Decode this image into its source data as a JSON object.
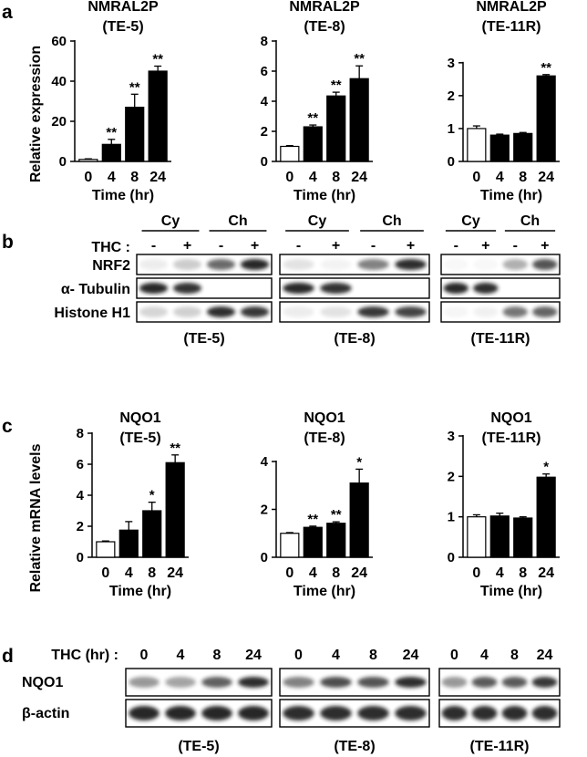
{
  "panel_letters": [
    "a",
    "b",
    "c",
    "d"
  ],
  "time_axis_label": "Time (hr)",
  "blot_colors": {
    "band": "#1a1a1a",
    "frame": "#000000",
    "bar_fill": "#000000",
    "control_fill": "#ffffff"
  },
  "chart_data": [
    {
      "type": "bar",
      "panel": "a",
      "title": [
        "NMRAL2P",
        "(TE-5)"
      ],
      "ylabel": "Relative expression",
      "xlabel": "Time (hr)",
      "categories": [
        "0",
        "4",
        "8",
        "24"
      ],
      "values": [
        1,
        8.5,
        27,
        45
      ],
      "errors": [
        0.3,
        2.5,
        6.5,
        2.5
      ],
      "significance": [
        "",
        "**",
        "**",
        "**"
      ],
      "ylim": [
        0,
        60
      ],
      "yticks": [
        0,
        20,
        40,
        60
      ]
    },
    {
      "type": "bar",
      "panel": "a",
      "title": [
        "NMRAL2P",
        "(TE-8)"
      ],
      "ylabel": "",
      "xlabel": "Time (hr)",
      "categories": [
        "0",
        "4",
        "8",
        "24"
      ],
      "values": [
        1,
        2.3,
        4.35,
        5.5
      ],
      "errors": [
        0.05,
        0.12,
        0.25,
        0.85
      ],
      "significance": [
        "",
        "**",
        "**",
        "**"
      ],
      "ylim": [
        0,
        8
      ],
      "yticks": [
        0,
        2,
        4,
        6,
        8
      ]
    },
    {
      "type": "bar",
      "panel": "a",
      "title": [
        "NMRAL2P",
        "(TE-11R)"
      ],
      "ylabel": "",
      "xlabel": "Time (hr)",
      "categories": [
        "0",
        "4",
        "8",
        "24"
      ],
      "values": [
        1,
        0.8,
        0.85,
        2.6
      ],
      "errors": [
        0.08,
        0.03,
        0.03,
        0.04
      ],
      "significance": [
        "",
        "",
        "",
        "**"
      ],
      "ylim": [
        0,
        3.3
      ],
      "yticks": [
        0,
        1,
        2,
        3
      ]
    },
    {
      "type": "bar",
      "panel": "c",
      "title": [
        "NQO1",
        "(TE-5)"
      ],
      "ylabel": "Relative mRNA levels",
      "xlabel": "Time (hr)",
      "categories": [
        "0",
        "4",
        "8",
        "24"
      ],
      "values": [
        1,
        1.75,
        3,
        6.1
      ],
      "errors": [
        0.05,
        0.55,
        0.55,
        0.5
      ],
      "significance": [
        "",
        "",
        "*",
        "**"
      ],
      "ylim": [
        0,
        8
      ],
      "yticks": [
        0,
        2,
        4,
        6,
        8
      ]
    },
    {
      "type": "bar",
      "panel": "c",
      "title": [
        "NQO1",
        "(TE-8)"
      ],
      "ylabel": "",
      "xlabel": "Time (hr)",
      "categories": [
        "0",
        "4",
        "8",
        "24"
      ],
      "values": [
        1,
        1.25,
        1.42,
        3.1
      ],
      "errors": [
        0.03,
        0.05,
        0.06,
        0.58
      ],
      "significance": [
        "",
        "**",
        "**",
        "*"
      ],
      "ylim": [
        0,
        4.8
      ],
      "yticks": [
        0,
        2,
        4
      ]
    },
    {
      "type": "bar",
      "panel": "c",
      "title": [
        "NQO1",
        "(TE-11R)"
      ],
      "ylabel": "",
      "xlabel": "Time (hr)",
      "categories": [
        "0",
        "4",
        "8",
        "24"
      ],
      "values": [
        1,
        1.02,
        0.97,
        1.98
      ],
      "errors": [
        0.05,
        0.07,
        0.03,
        0.08
      ],
      "significance": [
        "",
        "",
        "",
        "*"
      ],
      "ylim": [
        0,
        3
      ],
      "yticks": [
        0,
        1,
        2,
        3
      ]
    }
  ],
  "western_b": {
    "fraction_labels": [
      "Cy",
      "Ch"
    ],
    "treatment_label": "THC :",
    "treatment_signs": [
      "-",
      "+",
      "-",
      "+"
    ],
    "row_labels": [
      "NRF2",
      "α- Tubulin",
      "Histone H1"
    ],
    "cell_lines": [
      "(TE-5)",
      "(TE-8)",
      "(TE-11R)"
    ],
    "band_intensity": [
      [
        [
          0.08,
          0.22,
          0.65,
          0.95
        ],
        [
          0.12,
          0.05,
          0.55,
          0.92
        ],
        [
          0.03,
          0.03,
          0.35,
          0.75
        ]
      ],
      [
        [
          0.95,
          0.9,
          0,
          0
        ],
        [
          0.95,
          0.9,
          0,
          0
        ],
        [
          0.95,
          0.92,
          0,
          0
        ]
      ],
      [
        [
          0.18,
          0.2,
          0.92,
          0.88
        ],
        [
          0.08,
          0.12,
          0.88,
          0.82
        ],
        [
          0.04,
          0.06,
          0.6,
          0.68
        ]
      ]
    ]
  },
  "western_d": {
    "treatment_label": "THC (hr) :",
    "timepoints": [
      "0",
      "4",
      "8",
      "24"
    ],
    "row_labels": [
      "NQO1",
      "β-actin"
    ],
    "cell_lines": [
      "(TE-5)",
      "(TE-8)",
      "(TE-11R)"
    ],
    "band_intensity": [
      [
        [
          0.45,
          0.4,
          0.7,
          0.92
        ],
        [
          0.55,
          0.78,
          0.75,
          0.92
        ],
        [
          0.45,
          0.72,
          0.72,
          0.88
        ]
      ],
      [
        [
          0.95,
          0.95,
          0.95,
          0.95
        ],
        [
          0.92,
          0.92,
          0.92,
          0.92
        ],
        [
          0.92,
          0.92,
          0.92,
          0.92
        ]
      ]
    ]
  }
}
